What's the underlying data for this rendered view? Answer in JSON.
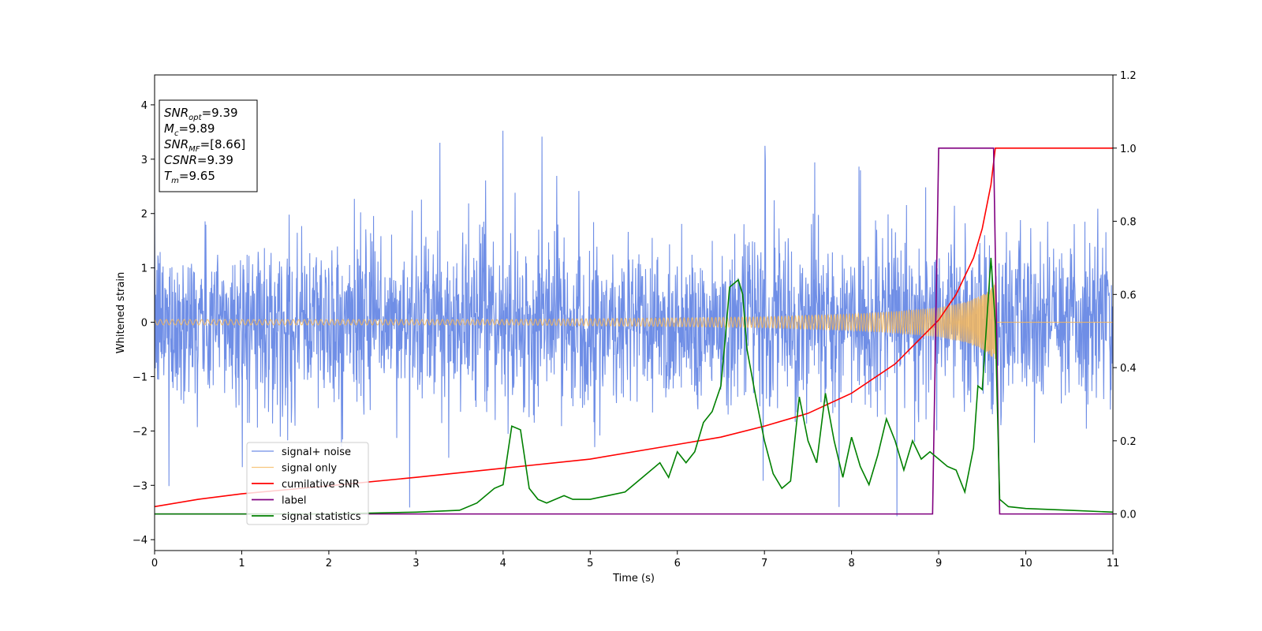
{
  "chart_data": {
    "type": "line",
    "xlabel": "Time (s)",
    "ylabel": "Whitened strain",
    "xlim": [
      0,
      11
    ],
    "ylim_left": [
      -4.2,
      4.55
    ],
    "ylim_right": [
      -0.1,
      1.2
    ],
    "x_ticks": [
      "0",
      "1",
      "2",
      "3",
      "4",
      "5",
      "6",
      "7",
      "8",
      "9",
      "10",
      "11"
    ],
    "y_ticks_left": [
      "−4",
      "−3",
      "−2",
      "−1",
      "0",
      "1",
      "2",
      "3",
      "4"
    ],
    "y_ticks_right": [
      "0.0",
      "0.2",
      "0.4",
      "0.6",
      "0.8",
      "1.0",
      "1.2"
    ],
    "legend": {
      "placement": "lower-left",
      "entries": [
        {
          "key": "noise",
          "label": "signal+ noise"
        },
        {
          "key": "signal",
          "label": "signal only"
        },
        {
          "key": "csnr",
          "label": "cumilative SNR"
        },
        {
          "key": "label",
          "label": "label"
        },
        {
          "key": "stats",
          "label": "signal statistics"
        }
      ]
    },
    "stats_box": {
      "placement": "top-left",
      "lines": [
        {
          "name": "SNR",
          "sub": "opt",
          "value": "=9.39"
        },
        {
          "name": "M",
          "sub": "c",
          "value": "=9.89"
        },
        {
          "name": "SNR",
          "sub": "MF",
          "value": "=[8.66]"
        },
        {
          "name": "CSNR",
          "sub": "",
          "value": "=9.39"
        },
        {
          "name": "T",
          "sub": "m",
          "value": "=9.65"
        }
      ]
    },
    "colors": {
      "noise": "#6f8ee6",
      "signal": "#f5b75c",
      "csnr": "#ff0000",
      "label": "#800080",
      "stats": "#008000"
    },
    "series": {
      "signal_plus_noise": {
        "axis": "left",
        "description_values": {
          "amplitude_typical": [
            -2.0,
            2.5
          ],
          "max": 4.2,
          "min": -3.8
        }
      },
      "signal_only": {
        "axis": "left",
        "envelope": {
          "x": [
            0,
            2,
            4,
            6,
            7,
            8,
            8.5,
            9,
            9.3,
            9.5,
            9.6,
            9.65
          ],
          "y": [
            0.05,
            0.05,
            0.05,
            0.08,
            0.1,
            0.15,
            0.2,
            0.27,
            0.37,
            0.5,
            0.62,
            0.75
          ]
        }
      },
      "cumulative_snr": {
        "axis": "right",
        "x": [
          0,
          0.5,
          1,
          2,
          3,
          4,
          5,
          6,
          6.5,
          7,
          7.5,
          8,
          8.5,
          9,
          9.2,
          9.4,
          9.5,
          9.6,
          9.65,
          11
        ],
        "y": [
          0.02,
          0.04,
          0.055,
          0.077,
          0.1,
          0.125,
          0.15,
          0.19,
          0.21,
          0.24,
          0.275,
          0.33,
          0.41,
          0.53,
          0.6,
          0.7,
          0.78,
          0.9,
          1.0,
          1.0
        ]
      },
      "label": {
        "axis": "right",
        "x": [
          0,
          8.93,
          9.0,
          9.63,
          9.7,
          11
        ],
        "y": [
          0,
          0,
          1,
          1,
          0,
          0
        ]
      },
      "signal_statistics": {
        "axis": "right",
        "x": [
          0,
          1,
          2,
          3,
          3.5,
          3.7,
          3.9,
          4.0,
          4.1,
          4.2,
          4.3,
          4.4,
          4.5,
          4.7,
          4.8,
          5.0,
          5.2,
          5.4,
          5.6,
          5.8,
          5.9,
          6.0,
          6.1,
          6.2,
          6.3,
          6.4,
          6.5,
          6.55,
          6.6,
          6.7,
          6.75,
          6.8,
          6.9,
          7.0,
          7.1,
          7.2,
          7.3,
          7.4,
          7.5,
          7.6,
          7.7,
          7.8,
          7.9,
          8.0,
          8.1,
          8.2,
          8.3,
          8.4,
          8.5,
          8.6,
          8.7,
          8.8,
          8.9,
          9.0,
          9.1,
          9.2,
          9.3,
          9.4,
          9.45,
          9.5,
          9.55,
          9.6,
          9.65,
          9.7,
          9.75,
          9.8,
          10.0,
          10.5,
          11
        ],
        "y": [
          0,
          0,
          0,
          0.005,
          0.01,
          0.03,
          0.07,
          0.08,
          0.24,
          0.23,
          0.07,
          0.04,
          0.03,
          0.05,
          0.04,
          0.04,
          0.05,
          0.06,
          0.1,
          0.14,
          0.1,
          0.17,
          0.14,
          0.17,
          0.25,
          0.28,
          0.35,
          0.48,
          0.62,
          0.64,
          0.6,
          0.45,
          0.32,
          0.2,
          0.11,
          0.07,
          0.09,
          0.32,
          0.2,
          0.14,
          0.33,
          0.2,
          0.1,
          0.21,
          0.13,
          0.08,
          0.16,
          0.26,
          0.2,
          0.12,
          0.2,
          0.15,
          0.17,
          0.15,
          0.13,
          0.12,
          0.06,
          0.18,
          0.35,
          0.34,
          0.52,
          0.7,
          0.52,
          0.04,
          0.03,
          0.02,
          0.015,
          0.01,
          0.005
        ]
      }
    }
  }
}
